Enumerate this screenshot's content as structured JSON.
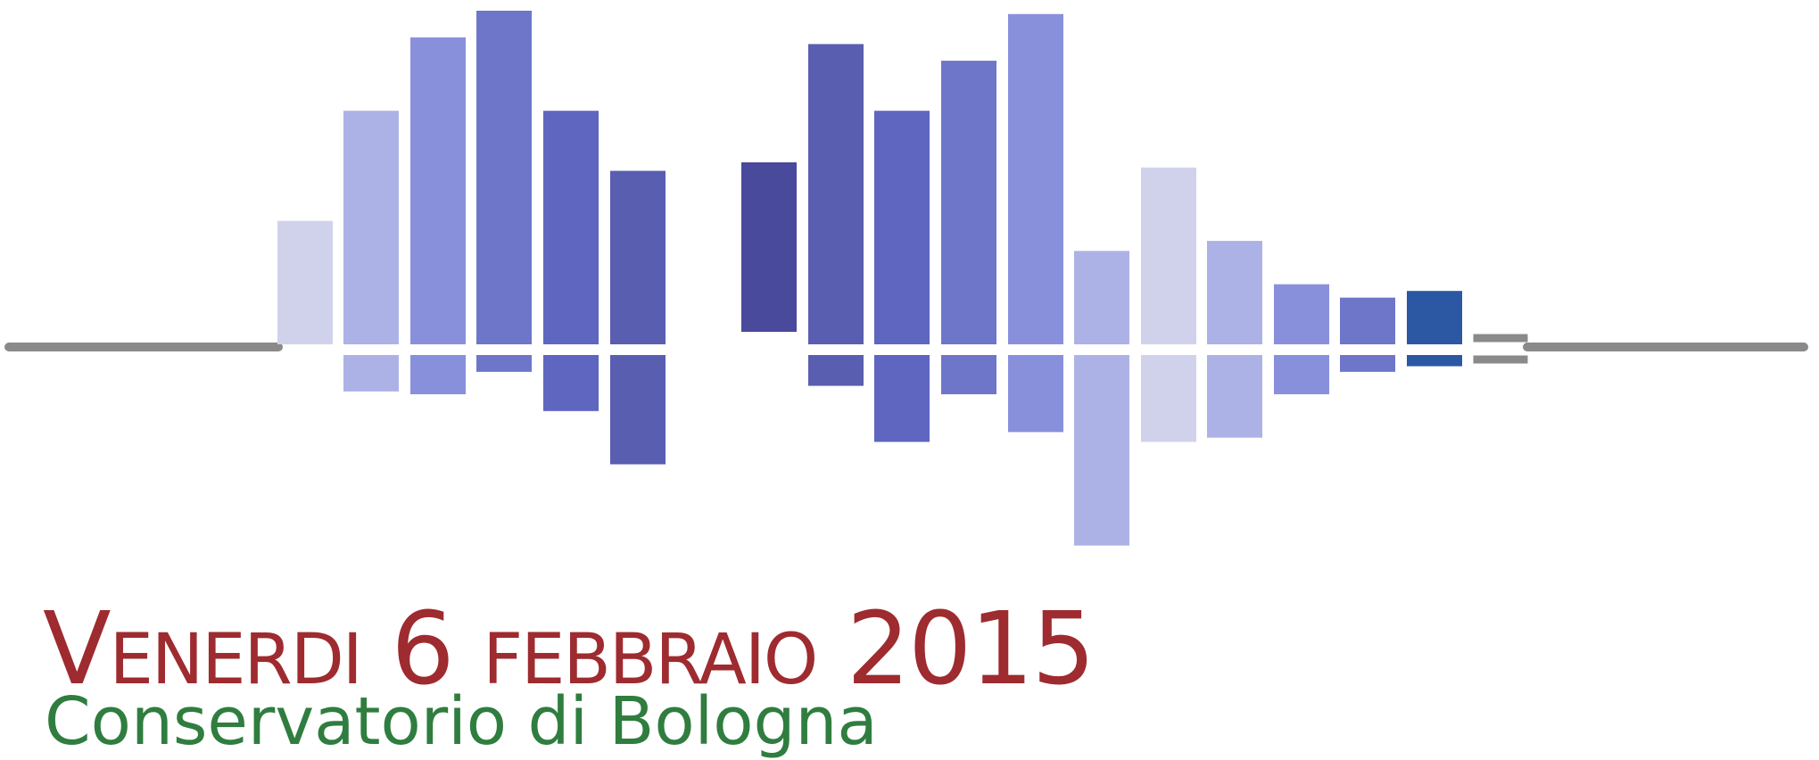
{
  "event": {
    "date": "Venerdi 6 febbraio 2015",
    "venue": "Conservatorio di Bologna"
  },
  "colors": {
    "date_text": "#9e2b2f",
    "venue_text": "#2f7d3f",
    "axis_line": "#8a8a8a",
    "bar_palette": [
      "#d0d2ec",
      "#adb2e6",
      "#8890dc",
      "#6e76ca",
      "#5e66bf",
      "#5a5eb0",
      "#494a9b",
      "#2c57a2"
    ]
  },
  "logo": {
    "name": "audio-waveform",
    "bars": [
      {
        "up": 0.37,
        "down": 0.0,
        "color": "#d0d2ec"
      },
      {
        "up": 0.7,
        "down": 0.26,
        "color": "#adb2e6"
      },
      {
        "up": 0.92,
        "down": 0.28,
        "color": "#8890dc"
      },
      {
        "up": 1.0,
        "down": 0.12,
        "color": "#6e76ca"
      },
      {
        "up": 0.7,
        "down": 0.4,
        "color": "#5e66bf"
      },
      {
        "up": 0.52,
        "down": 0.78,
        "color": "#5a5eb0"
      },
      {
        "up": 0.63,
        "down": 0.0,
        "color": "#494a9b",
        "floating": true
      },
      {
        "up": 0.9,
        "down": 0.22,
        "color": "#5a5eb0"
      },
      {
        "up": 0.7,
        "down": 0.62,
        "color": "#5e66bf"
      },
      {
        "up": 0.85,
        "down": 0.28,
        "color": "#6e76ca"
      },
      {
        "up": 0.99,
        "down": 0.55,
        "color": "#8890dc"
      },
      {
        "up": 0.28,
        "down": 1.36,
        "color": "#adb2e6"
      },
      {
        "up": 0.53,
        "down": 0.62,
        "color": "#d0d2ec"
      },
      {
        "up": 0.31,
        "down": 0.59,
        "color": "#adb2e6"
      },
      {
        "up": 0.18,
        "down": 0.28,
        "color": "#8890dc"
      },
      {
        "up": 0.14,
        "down": 0.12,
        "color": "#6e76ca"
      },
      {
        "up": 0.16,
        "down": 0.08,
        "color": "#2c57a2"
      }
    ]
  }
}
